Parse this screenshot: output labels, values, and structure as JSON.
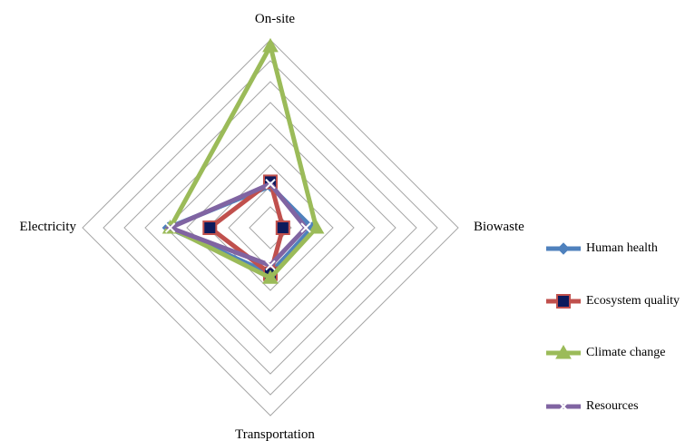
{
  "chart_data": {
    "type": "radar",
    "axes": [
      "On-site",
      "Biowaste",
      "Transportation",
      "Electricity"
    ],
    "rings": 9,
    "rmax": 9,
    "grid": true,
    "legend_position": "right",
    "series": [
      {
        "name": "Human health",
        "color": "#4F81BD",
        "marker": "diamond",
        "values": [
          2.0,
          2.0,
          2.2,
          4.9
        ]
      },
      {
        "name": "Ecosystem quality",
        "color": "#C0504D",
        "marker": "square",
        "values": [
          2.2,
          0.6,
          2.2,
          2.9
        ]
      },
      {
        "name": "Climate change",
        "color": "#9BBB59",
        "marker": "triangle",
        "values": [
          8.7,
          2.2,
          2.4,
          4.8
        ]
      },
      {
        "name": "Resources",
        "color": "#8064A2",
        "marker": "x",
        "values": [
          2.1,
          1.7,
          1.8,
          4.8
        ]
      }
    ]
  }
}
